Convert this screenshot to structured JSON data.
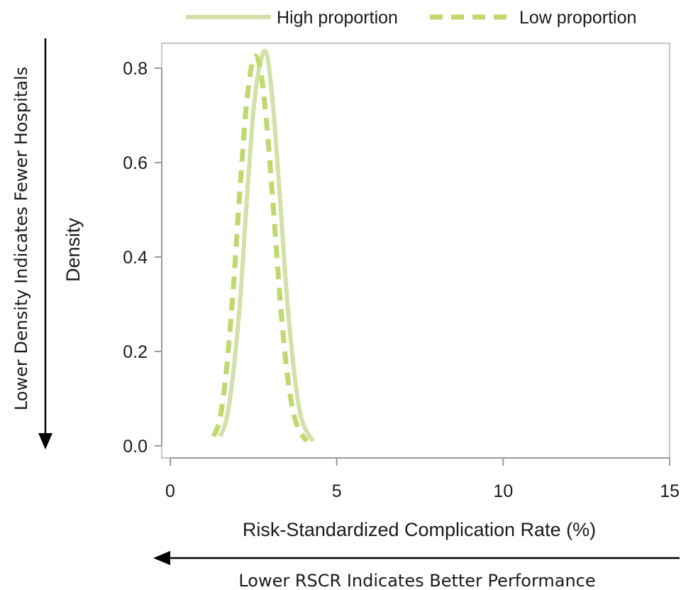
{
  "chart_data": {
    "type": "line",
    "title": "",
    "xlabel": "Risk-Standardized Complication Rate (%)",
    "ylabel": "Density",
    "xlim": [
      0,
      15
    ],
    "ylim": [
      0,
      0.84
    ],
    "xticks": [
      0,
      5,
      10,
      15
    ],
    "yticks": [
      0.0,
      0.2,
      0.4,
      0.6,
      0.8
    ],
    "xtick_labels": [
      "0",
      "5",
      "10",
      "15"
    ],
    "ytick_labels": [
      "0.0",
      "0.2",
      "0.4",
      "0.6",
      "0.8"
    ],
    "grid": false,
    "legend_position": "top",
    "series": [
      {
        "name": "High proportion",
        "style": "solid",
        "color": "#d3e0a8",
        "x": [
          1.5,
          1.7,
          1.9,
          2.1,
          2.3,
          2.5,
          2.7,
          2.9,
          3.1,
          3.3,
          3.5,
          3.7,
          3.9,
          4.1,
          4.3
        ],
        "y": [
          0.02,
          0.06,
          0.16,
          0.31,
          0.52,
          0.71,
          0.81,
          0.83,
          0.71,
          0.52,
          0.32,
          0.17,
          0.07,
          0.03,
          0.01
        ]
      },
      {
        "name": "Low proportion",
        "style": "dashed",
        "color": "#bfd96d",
        "x": [
          1.3,
          1.5,
          1.7,
          1.9,
          2.1,
          2.3,
          2.5,
          2.7,
          2.9,
          3.1,
          3.3,
          3.5,
          3.7,
          3.9,
          4.1
        ],
        "y": [
          0.02,
          0.06,
          0.17,
          0.34,
          0.55,
          0.73,
          0.82,
          0.8,
          0.68,
          0.5,
          0.31,
          0.16,
          0.07,
          0.03,
          0.01
        ]
      }
    ],
    "annotations": {
      "vertical_arrow_label": "Lower Density Indicates Fewer Hospitals",
      "horizontal_arrow_label": "Lower RSCR Indicates Better Performance"
    }
  },
  "colors": {
    "axis": "#9a9a9a",
    "frame": "#bfc8bf",
    "text": "#1a1a1a",
    "arrow": "#000000"
  }
}
